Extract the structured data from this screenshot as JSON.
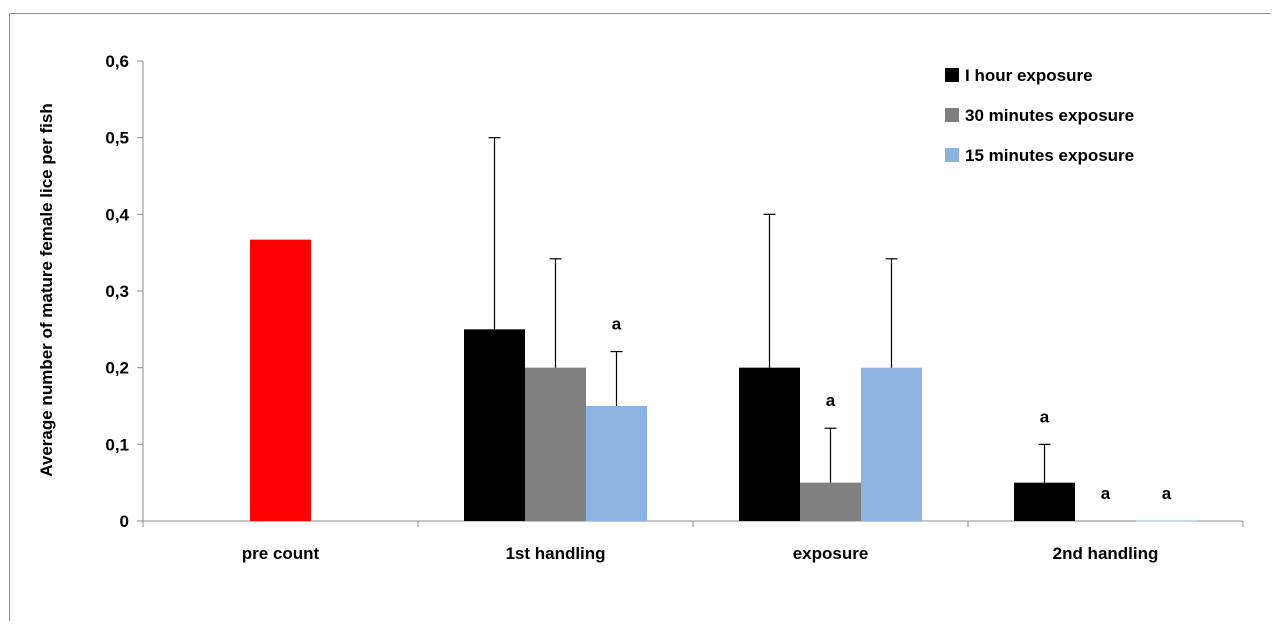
{
  "chart_data": {
    "type": "bar",
    "ylabel": "Average number of mature female lice per fish",
    "xlabel": "",
    "ylim": [
      0,
      0.6
    ],
    "ytick_step": 0.1,
    "ytick_labels": [
      "0",
      "0,1",
      "0,2",
      "0,3",
      "0,4",
      "0,5",
      "0,6"
    ],
    "grid": false,
    "legend_position": "top-right",
    "categories": [
      "pre count",
      "1st handling",
      "exposure",
      "2nd handling"
    ],
    "precount": {
      "value": 0.367,
      "color": "#ff0000"
    },
    "series": [
      {
        "name": "I hour exposure",
        "color": "#000000",
        "values": [
          null,
          0.25,
          0.2,
          0.05
        ],
        "errors": [
          null,
          0.25,
          0.2,
          0.05
        ],
        "annotations": [
          "",
          "",
          "",
          "a"
        ]
      },
      {
        "name": "30 minutes exposure",
        "color": "#808080",
        "values": [
          null,
          0.2,
          0.05,
          0.0
        ],
        "errors": [
          null,
          0.142,
          0.071,
          0.0
        ],
        "annotations": [
          "",
          "",
          "a",
          "a"
        ]
      },
      {
        "name": "15 minutes exposure",
        "color": "#8db3e2",
        "values": [
          null,
          0.15,
          0.2,
          0.0
        ],
        "errors": [
          null,
          0.071,
          0.142,
          0.0
        ],
        "annotations": [
          "",
          "a",
          "",
          "a"
        ]
      }
    ]
  }
}
